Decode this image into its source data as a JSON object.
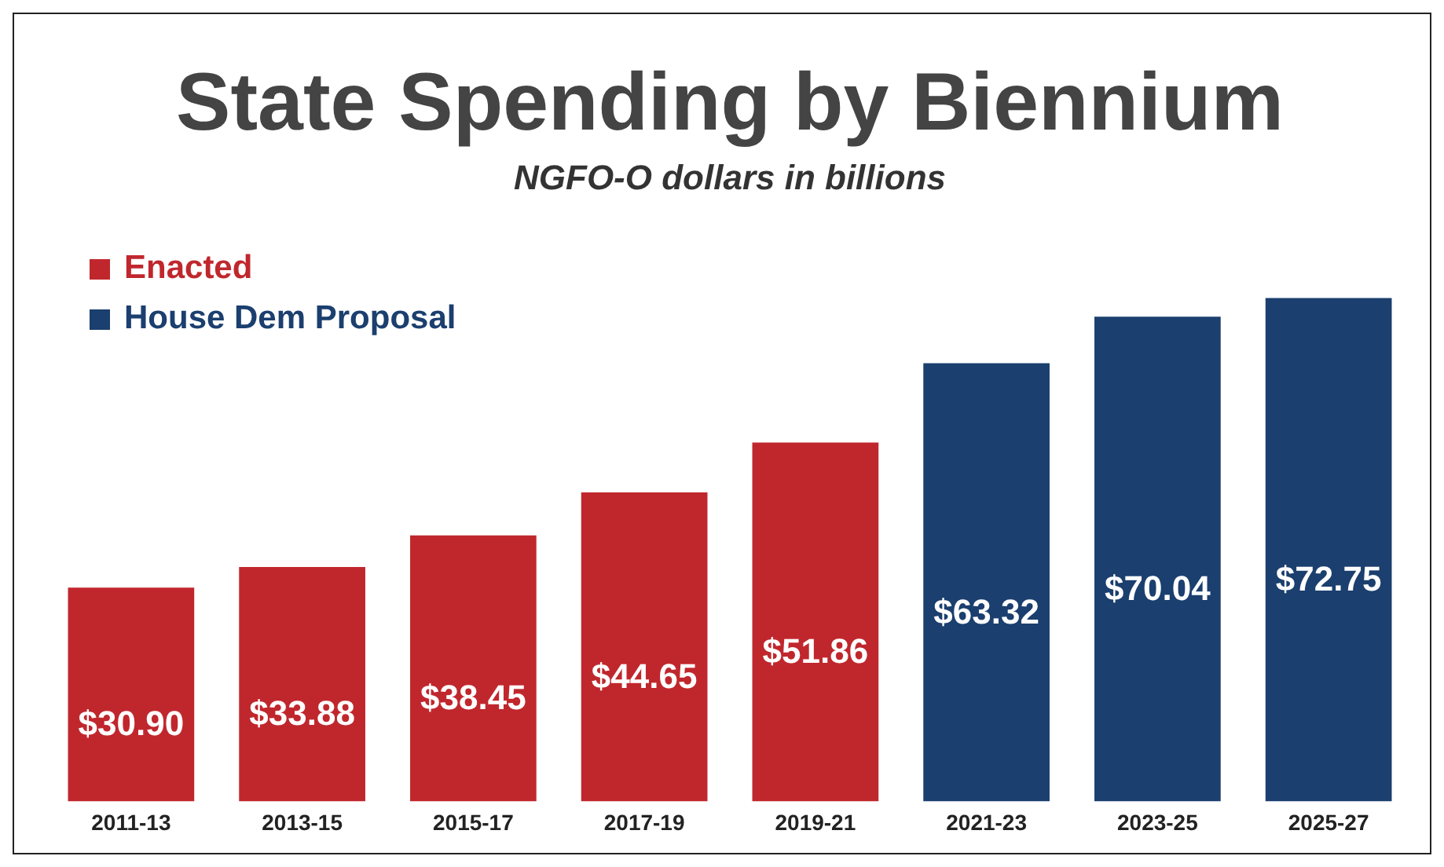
{
  "chart_data": {
    "type": "bar",
    "title": "State Spending by Biennium",
    "subtitle": "NGFO-O dollars in billions",
    "categories": [
      "2011-13",
      "2013-15",
      "2015-17",
      "2017-19",
      "2019-21",
      "2021-23",
      "2023-25",
      "2025-27"
    ],
    "series": [
      {
        "name": "Enacted",
        "color": "#c0272d",
        "values": [
          30.9,
          33.88,
          38.45,
          44.65,
          51.86,
          null,
          null,
          null
        ],
        "value_labels": [
          "$30.90",
          "$33.88",
          "$38.45",
          "$44.65",
          "$51.86",
          null,
          null,
          null
        ]
      },
      {
        "name": "House Dem Proposal",
        "color": "#1b3f6e",
        "values": [
          null,
          null,
          null,
          null,
          null,
          63.32,
          70.04,
          72.75
        ],
        "value_labels": [
          null,
          null,
          null,
          null,
          null,
          "$63.32",
          "$70.04",
          "$72.75"
        ]
      }
    ],
    "legend": "top left",
    "grid": false
  }
}
